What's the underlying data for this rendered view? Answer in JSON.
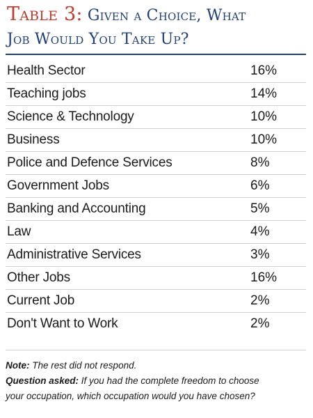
{
  "header": {
    "table_label": "Table 3:",
    "title_line1": "Given a Choice, What",
    "title_line2": "Job Would You Take Up?"
  },
  "chart_data": {
    "type": "table",
    "title": "Table 3: Given a Choice, What Job Would You Take Up?",
    "columns": [
      "",
      ""
    ],
    "rows": [
      {
        "category": "Health Sector",
        "value": "16%"
      },
      {
        "category": "Teaching jobs",
        "value": "14%"
      },
      {
        "category": "Science & Technology",
        "value": "10%"
      },
      {
        "category": "Business",
        "value": "10%"
      },
      {
        "category": "Police and Defence Services",
        "value": "8%"
      },
      {
        "category": "Government Jobs",
        "value": "6%"
      },
      {
        "category": "Banking and Accounting",
        "value": "5%"
      },
      {
        "category": "Law",
        "value": "4%"
      },
      {
        "category": "Administrative Services",
        "value": "3%"
      },
      {
        "category": "Other Jobs",
        "value": "16%"
      },
      {
        "category": "Current Job",
        "value": "2%"
      },
      {
        "category": "Don't Want to Work",
        "value": "2%"
      }
    ]
  },
  "notes": {
    "note_label": "Note:",
    "note_text": " The rest did not respond.",
    "question_label": "Question asked:",
    "question_text_1": " If you had the complete freedom to choose",
    "question_text_2": "your occupation, which occupation would you have chosen?"
  },
  "colors": {
    "title_blue": "#1f3f78",
    "title_red": "#c0392b",
    "row_divider": "#cfcfcf"
  }
}
